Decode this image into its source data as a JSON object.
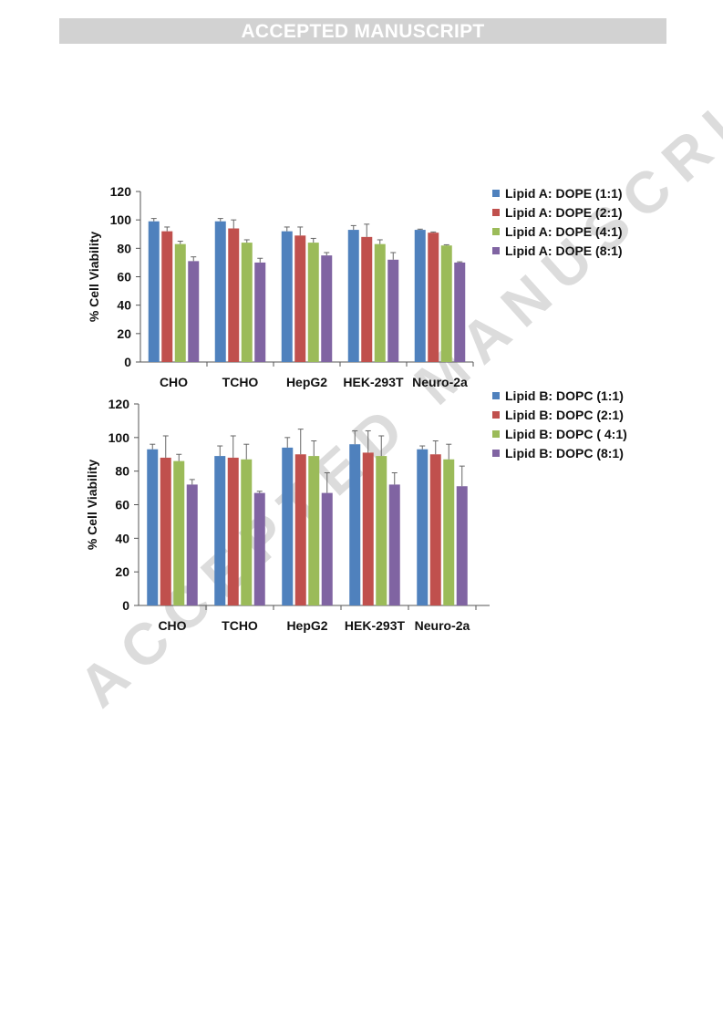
{
  "header": {
    "banner": "ACCEPTED MANUSCRIPT"
  },
  "watermark": {
    "text": "ACCEPTED MANUSCRIPT"
  },
  "colors": {
    "series": [
      "#4f81bd",
      "#c0504d",
      "#9bbb59",
      "#8064a2"
    ],
    "banner_bg": "#d2d2d2"
  },
  "chart_data": [
    {
      "type": "bar",
      "categories": [
        "CHO",
        "TCHO",
        "HepG2",
        "HEK-293T",
        "Neuro-2a"
      ],
      "ylabel": "% Cell Viability",
      "ylim": [
        0,
        120
      ],
      "yticks": [
        0,
        20,
        40,
        60,
        80,
        100,
        120
      ],
      "grid": false,
      "legend": "right",
      "series": [
        {
          "name": "Lipid A:  DOPE (1:1)",
          "values": [
            99,
            99,
            92,
            93,
            93
          ],
          "errors": [
            2,
            2,
            3,
            3,
            0.5
          ]
        },
        {
          "name": "Lipid A:  DOPE  (2:1)",
          "values": [
            92,
            94,
            89,
            88,
            91
          ],
          "errors": [
            3,
            6,
            6,
            9,
            0.5
          ]
        },
        {
          "name": "Lipid A:  DOPE  (4:1)",
          "values": [
            83,
            84,
            84,
            83,
            82
          ],
          "errors": [
            2,
            2,
            3,
            3,
            0.5
          ]
        },
        {
          "name": "Lipid A:  DOPE  (8:1)",
          "values": [
            71,
            70,
            75,
            72,
            70
          ],
          "errors": [
            3,
            3,
            2,
            5,
            0.5
          ]
        }
      ]
    },
    {
      "type": "bar",
      "categories": [
        "CHO",
        "TCHO",
        "HepG2",
        "HEK-293T",
        "Neuro-2a"
      ],
      "ylabel": "% Cell Viability",
      "ylim": [
        0,
        120
      ],
      "yticks": [
        0,
        20,
        40,
        60,
        80,
        100,
        120
      ],
      "grid": false,
      "legend": "right",
      "series": [
        {
          "name": "Lipid B:  DOPC  (1:1)",
          "values": [
            93,
            89,
            94,
            96,
            93
          ],
          "errors": [
            3,
            6,
            6,
            8,
            2
          ]
        },
        {
          "name": "Lipid B:  DOPC  (2:1)",
          "values": [
            88,
            88,
            90,
            91,
            90
          ],
          "errors": [
            13,
            13,
            15,
            13,
            8
          ]
        },
        {
          "name": "Lipid B:  DOPC  ( 4:1)",
          "values": [
            86,
            87,
            89,
            89,
            87
          ],
          "errors": [
            4,
            9,
            9,
            12,
            9
          ]
        },
        {
          "name": "Lipid B:  DOPC  (8:1)",
          "values": [
            72,
            67,
            67,
            72,
            71
          ],
          "errors": [
            3,
            1,
            12,
            7,
            12
          ]
        }
      ]
    }
  ]
}
